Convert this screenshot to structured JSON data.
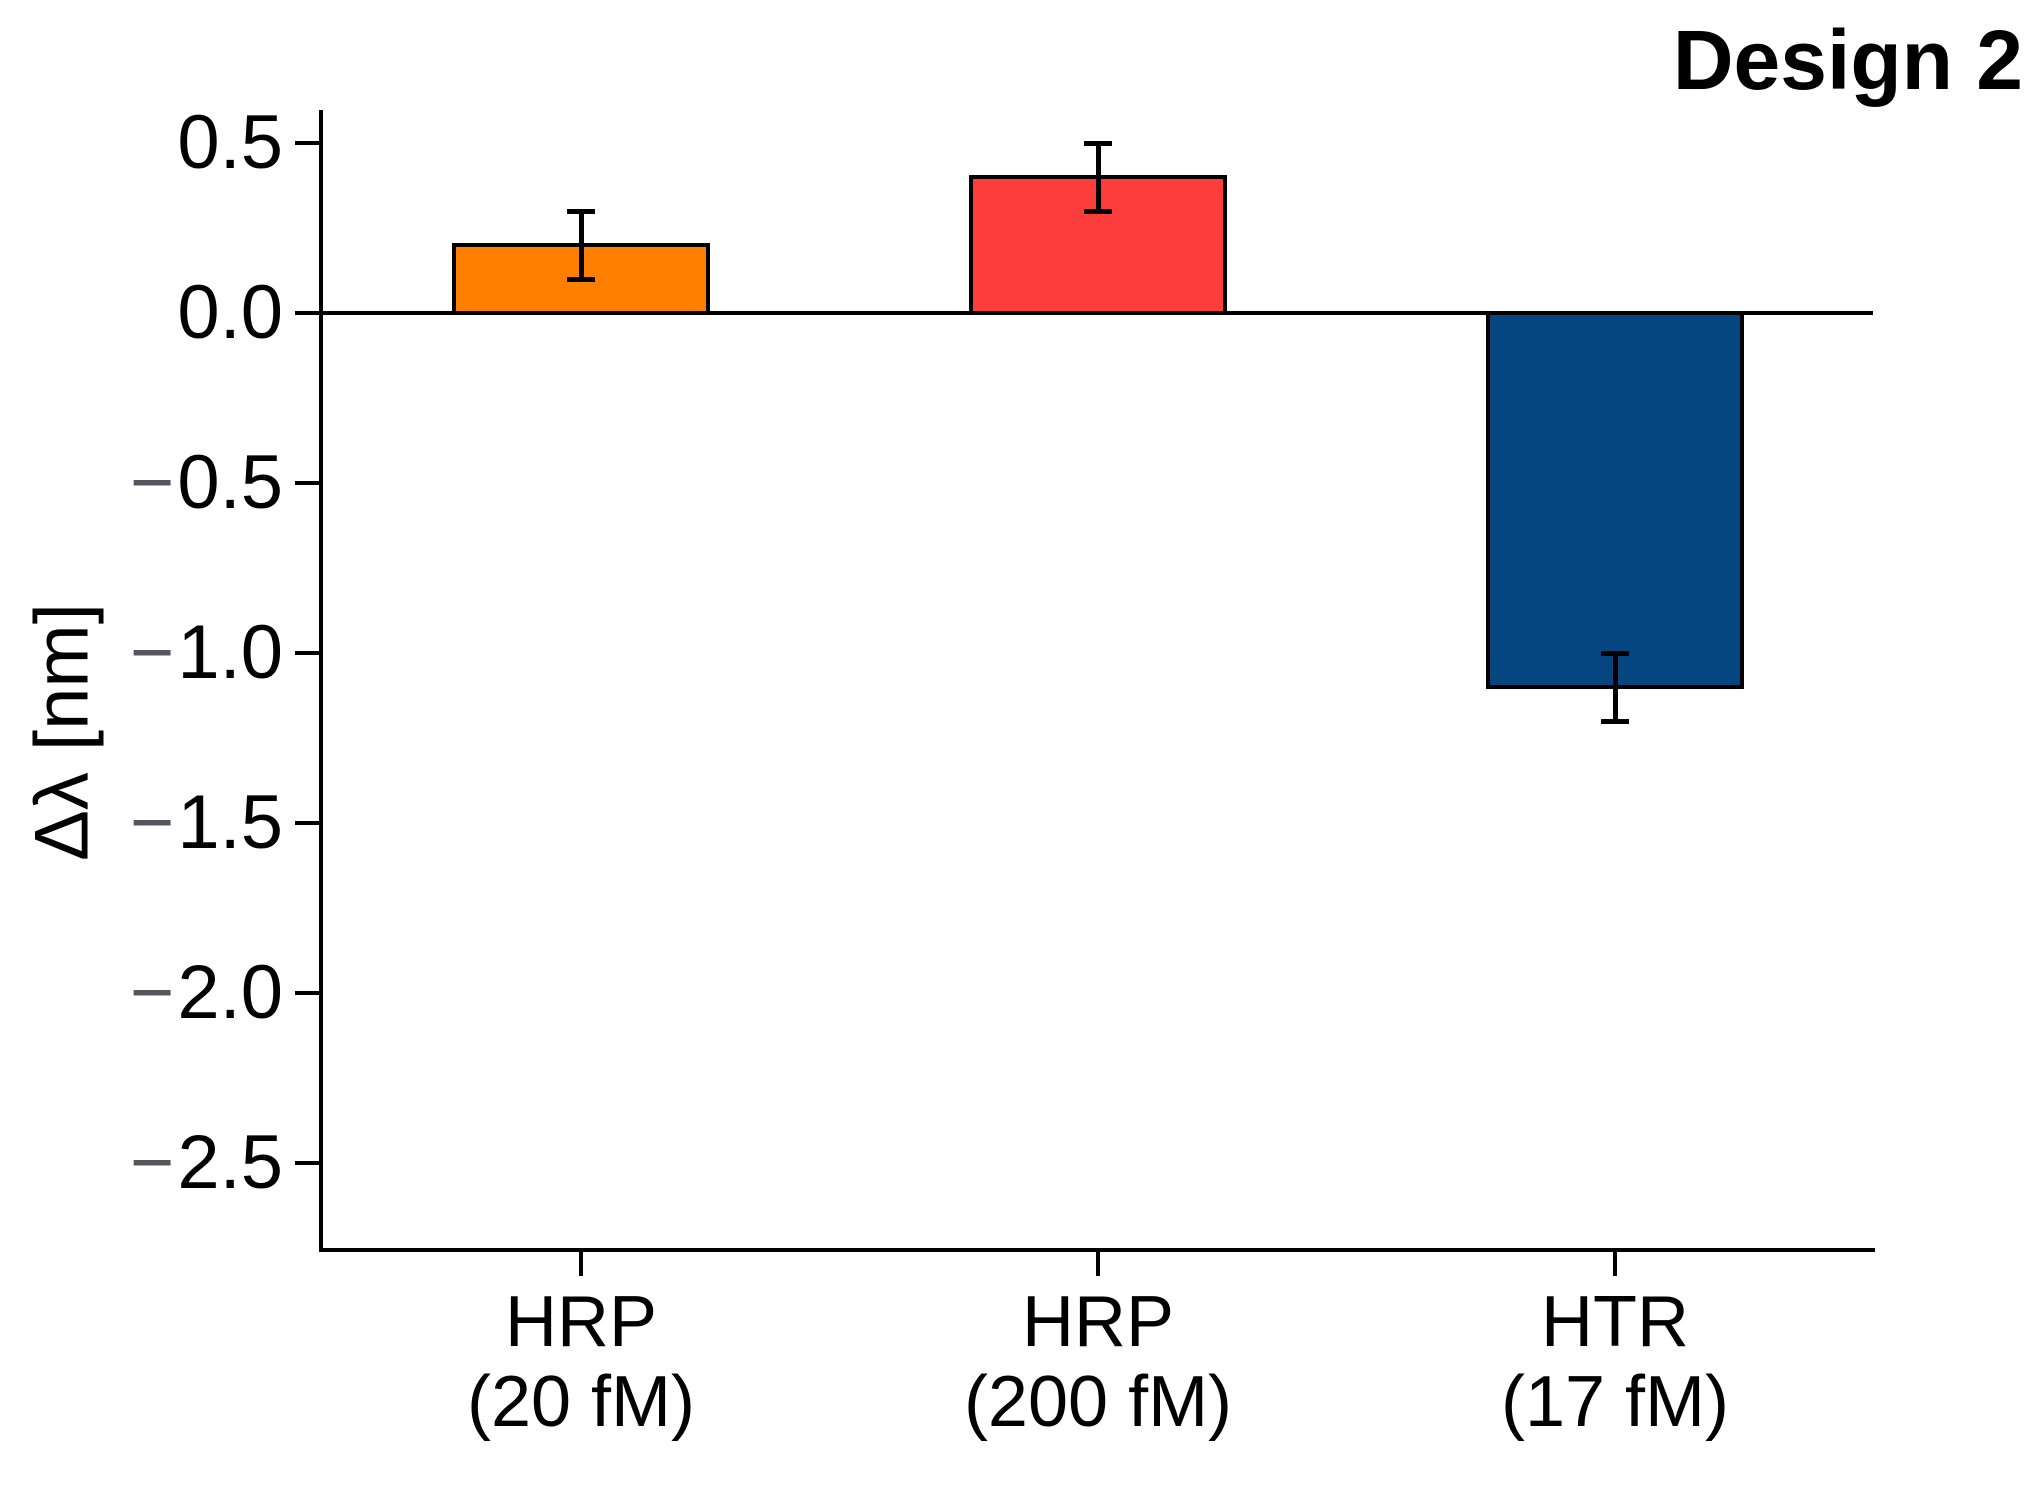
{
  "chart_data": {
    "type": "bar",
    "title": "Design 2",
    "ylabel": "Δλ [nm]",
    "xlabel": "",
    "ylim": [
      -2.75,
      0.6
    ],
    "grid": false,
    "legend": null,
    "categories": [
      "HRP (20 fM)",
      "HRP (200 fM)",
      "HTR (17 fM)"
    ],
    "values": [
      0.2,
      0.4,
      -1.1
    ],
    "errors": [
      0.1,
      0.1,
      0.1
    ],
    "bars": [
      {
        "label": "HRP",
        "sublabel": "(20 fM)",
        "value": 0.2,
        "error": 0.1,
        "color": "#FF8000"
      },
      {
        "label": "HRP",
        "sublabel": "(200 fM)",
        "value": 0.4,
        "error": 0.1,
        "color": "#FD3C3C"
      },
      {
        "label": "HTR",
        "sublabel": "(17 fM)",
        "value": -1.1,
        "error": 0.1,
        "color": "#054580"
      }
    ],
    "y_ticks": [
      {
        "sign": "",
        "num": "0.5",
        "value": 0.5
      },
      {
        "sign": "",
        "num": "0.0",
        "value": 0.0
      },
      {
        "sign": "−",
        "num": "0.5",
        "value": -0.5
      },
      {
        "sign": "−",
        "num": "1.0",
        "value": -1.0
      },
      {
        "sign": "−",
        "num": "1.5",
        "value": -1.5
      },
      {
        "sign": "−",
        "num": "2.0",
        "value": -2.0
      },
      {
        "sign": "−",
        "num": "2.5",
        "value": -2.5
      }
    ],
    "colors": {
      "axis": "#000000",
      "tick_label": "#000000",
      "minus_sign": "#54585E",
      "background": "#FFFFFF"
    }
  }
}
